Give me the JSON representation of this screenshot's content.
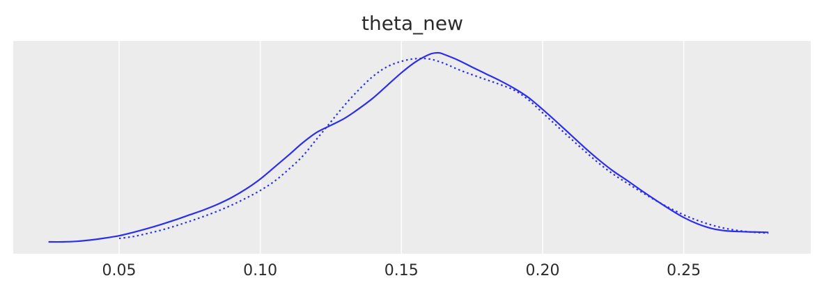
{
  "chart_data": {
    "type": "line",
    "title": "theta_new",
    "xlabel": "",
    "ylabel": "",
    "xlim": [
      0.0125,
      0.295
    ],
    "ylim": [
      0,
      1.05
    ],
    "x_ticks": [
      "0.05",
      "0.10",
      "0.15",
      "0.20",
      "0.25"
    ],
    "grid": true,
    "background": "#ececec",
    "series": [
      {
        "style": "solid",
        "color": "#2a2eec",
        "x": [
          0.025,
          0.03,
          0.035,
          0.04,
          0.045,
          0.05,
          0.055,
          0.06,
          0.065,
          0.07,
          0.075,
          0.08,
          0.085,
          0.09,
          0.095,
          0.1,
          0.105,
          0.11,
          0.115,
          0.12,
          0.125,
          0.13,
          0.135,
          0.14,
          0.145,
          0.15,
          0.155,
          0.16,
          0.163,
          0.165,
          0.17,
          0.175,
          0.18,
          0.185,
          0.19,
          0.195,
          0.2,
          0.205,
          0.21,
          0.215,
          0.22,
          0.225,
          0.23,
          0.235,
          0.24,
          0.245,
          0.25,
          0.255,
          0.26,
          0.265,
          0.27,
          0.275,
          0.28
        ],
        "y": [
          0.0,
          0.0,
          0.003,
          0.01,
          0.02,
          0.032,
          0.05,
          0.07,
          0.092,
          0.116,
          0.142,
          0.168,
          0.198,
          0.234,
          0.278,
          0.33,
          0.392,
          0.455,
          0.52,
          0.575,
          0.612,
          0.65,
          0.7,
          0.756,
          0.822,
          0.888,
          0.945,
          0.985,
          0.993,
          0.985,
          0.955,
          0.918,
          0.882,
          0.846,
          0.806,
          0.758,
          0.696,
          0.63,
          0.562,
          0.494,
          0.43,
          0.372,
          0.322,
          0.27,
          0.22,
          0.172,
          0.128,
          0.094,
          0.07,
          0.058,
          0.054,
          0.052,
          0.05
        ]
      },
      {
        "style": "dotted",
        "color": "#2a2eec",
        "x": [
          0.05,
          0.055,
          0.06,
          0.065,
          0.07,
          0.075,
          0.08,
          0.085,
          0.09,
          0.095,
          0.1,
          0.105,
          0.11,
          0.115,
          0.12,
          0.125,
          0.13,
          0.135,
          0.14,
          0.145,
          0.15,
          0.155,
          0.16,
          0.165,
          0.17,
          0.175,
          0.18,
          0.185,
          0.19,
          0.195,
          0.2,
          0.205,
          0.21,
          0.215,
          0.22,
          0.225,
          0.23,
          0.235,
          0.24,
          0.245,
          0.25,
          0.255,
          0.26,
          0.265,
          0.27,
          0.275,
          0.28
        ],
        "y": [
          0.018,
          0.028,
          0.044,
          0.062,
          0.084,
          0.108,
          0.134,
          0.162,
          0.194,
          0.23,
          0.27,
          0.318,
          0.38,
          0.45,
          0.54,
          0.63,
          0.72,
          0.8,
          0.87,
          0.92,
          0.948,
          0.962,
          0.96,
          0.938,
          0.906,
          0.878,
          0.852,
          0.826,
          0.796,
          0.746,
          0.678,
          0.61,
          0.542,
          0.476,
          0.412,
          0.356,
          0.308,
          0.262,
          0.218,
          0.178,
          0.142,
          0.112,
          0.088,
          0.07,
          0.058,
          0.05,
          0.046
        ]
      }
    ]
  }
}
